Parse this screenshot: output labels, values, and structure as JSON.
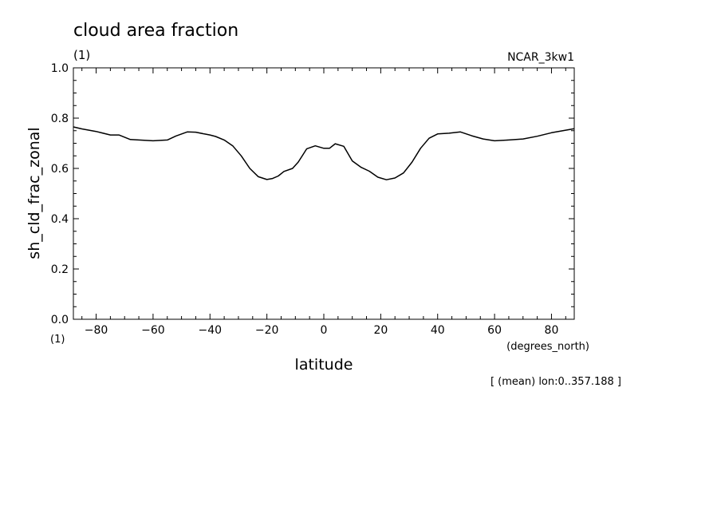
{
  "chart_data": {
    "type": "line",
    "title": "cloud area fraction",
    "units_label": "(1)",
    "model_label": "NCAR_3kw1",
    "ylabel": "sh_cld_frac_zonal",
    "xlabel": "latitude",
    "x_units": "(degrees_north)",
    "y_units": "(1)",
    "footnote": "[ (mean) lon:0..357.188 ]",
    "xlim": [
      -88,
      88
    ],
    "ylim": [
      0,
      1
    ],
    "x_ticks": [
      -80,
      -60,
      -40,
      -20,
      0,
      20,
      40,
      60,
      80
    ],
    "x_tick_labels": [
      "−80",
      "−60",
      "−40",
      "−20",
      "0",
      "20",
      "40",
      "60",
      "80"
    ],
    "y_ticks": [
      0,
      0.2,
      0.4,
      0.6,
      0.8,
      1.0
    ],
    "y_tick_labels": [
      "0.0",
      "0.2",
      "0.4",
      "0.6",
      "0.8",
      "1.0"
    ],
    "grid": false,
    "series": [
      {
        "x": [
          -88,
          -85,
          -80,
          -75,
          -72,
          -68,
          -65,
          -60,
          -55,
          -52,
          -48,
          -45,
          -42,
          -40,
          -38,
          -35,
          -32,
          -29,
          -26,
          -23,
          -20,
          -18,
          -16,
          -14,
          -11,
          -9,
          -6,
          -3,
          0,
          2,
          4,
          7,
          10,
          13,
          16,
          19,
          22,
          25,
          28,
          31,
          34,
          37,
          40,
          44,
          48,
          52,
          56,
          60,
          65,
          70,
          75,
          80,
          85,
          88
        ],
        "y": [
          0.765,
          0.757,
          0.747,
          0.733,
          0.733,
          0.715,
          0.713,
          0.71,
          0.713,
          0.729,
          0.745,
          0.744,
          0.737,
          0.733,
          0.727,
          0.713,
          0.69,
          0.65,
          0.6,
          0.567,
          0.556,
          0.56,
          0.57,
          0.588,
          0.6,
          0.625,
          0.678,
          0.69,
          0.68,
          0.68,
          0.698,
          0.688,
          0.63,
          0.605,
          0.589,
          0.565,
          0.555,
          0.562,
          0.582,
          0.625,
          0.68,
          0.72,
          0.737,
          0.74,
          0.745,
          0.73,
          0.717,
          0.71,
          0.713,
          0.717,
          0.728,
          0.742,
          0.752,
          0.758
        ]
      }
    ]
  }
}
